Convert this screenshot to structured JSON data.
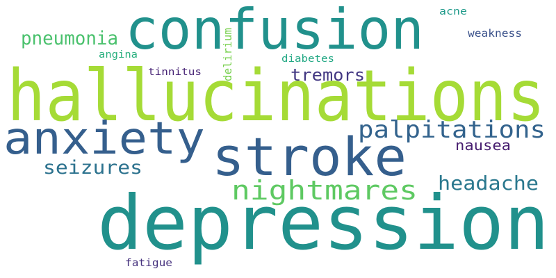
{
  "words": [
    {
      "text": "hallucinations",
      "color": "#a5db36"
    },
    {
      "text": "depression",
      "color": "#21918c"
    },
    {
      "text": "confusion",
      "color": "#21918c"
    },
    {
      "text": "stroke",
      "color": "#355f8d"
    },
    {
      "text": "anxiety",
      "color": "#355f8d"
    },
    {
      "text": "nightmares",
      "color": "#5ec962"
    },
    {
      "text": "palpitations",
      "color": "#33638d"
    },
    {
      "text": "headache",
      "color": "#2a788e"
    },
    {
      "text": "seizures",
      "color": "#2c728e"
    },
    {
      "text": "pneumonia",
      "color": "#4ac16d"
    },
    {
      "text": "tremors",
      "color": "#443983"
    },
    {
      "text": "nausea",
      "color": "#481f70"
    },
    {
      "text": "delirium",
      "color": "#7ad151"
    },
    {
      "text": "weakness",
      "color": "#3b528b"
    },
    {
      "text": "diabetes",
      "color": "#22a884"
    },
    {
      "text": "tinnitus",
      "color": "#482576"
    },
    {
      "text": "angina",
      "color": "#2ab07f"
    },
    {
      "text": "acne",
      "color": "#1f9a8a"
    },
    {
      "text": "fatigue",
      "color": "#46327e"
    }
  ]
}
